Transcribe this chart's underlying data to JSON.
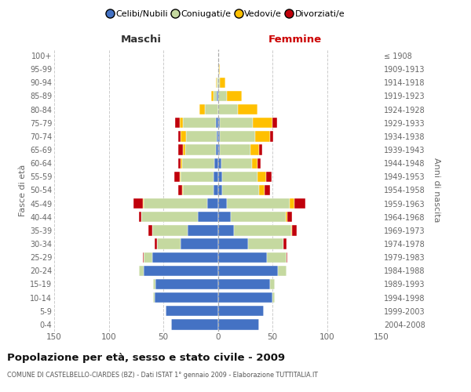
{
  "age_groups": [
    "0-4",
    "5-9",
    "10-14",
    "15-19",
    "20-24",
    "25-29",
    "30-34",
    "35-39",
    "40-44",
    "45-49",
    "50-54",
    "55-59",
    "60-64",
    "65-69",
    "70-74",
    "75-79",
    "80-84",
    "85-89",
    "90-94",
    "95-99",
    "100+"
  ],
  "birth_years": [
    "2004-2008",
    "1999-2003",
    "1994-1998",
    "1989-1993",
    "1984-1988",
    "1979-1983",
    "1974-1978",
    "1969-1973",
    "1964-1968",
    "1959-1963",
    "1954-1958",
    "1949-1953",
    "1944-1948",
    "1939-1943",
    "1934-1938",
    "1929-1933",
    "1924-1928",
    "1919-1923",
    "1914-1918",
    "1909-1913",
    "≤ 1908"
  ],
  "male_celibi": [
    43,
    48,
    58,
    57,
    68,
    60,
    34,
    28,
    18,
    10,
    4,
    4,
    3,
    2,
    1,
    2,
    0,
    1,
    0,
    0,
    0
  ],
  "male_coniugati": [
    0,
    0,
    1,
    2,
    4,
    8,
    22,
    32,
    52,
    58,
    28,
    30,
    30,
    28,
    28,
    30,
    12,
    3,
    1,
    0,
    0
  ],
  "male_vedovi": [
    0,
    0,
    0,
    0,
    0,
    0,
    0,
    0,
    0,
    1,
    1,
    1,
    1,
    2,
    5,
    3,
    5,
    2,
    1,
    0,
    0
  ],
  "male_divorziati": [
    0,
    0,
    0,
    0,
    0,
    1,
    2,
    4,
    2,
    8,
    3,
    5,
    2,
    4,
    2,
    4,
    0,
    0,
    0,
    0,
    0
  ],
  "female_nubili": [
    38,
    42,
    50,
    48,
    55,
    45,
    28,
    15,
    12,
    8,
    4,
    4,
    3,
    2,
    2,
    2,
    0,
    0,
    0,
    0,
    0
  ],
  "female_coniugate": [
    0,
    0,
    2,
    4,
    8,
    18,
    32,
    52,
    50,
    58,
    34,
    32,
    28,
    28,
    32,
    30,
    18,
    8,
    2,
    1,
    0
  ],
  "female_vedove": [
    0,
    0,
    0,
    0,
    0,
    0,
    0,
    1,
    2,
    4,
    5,
    8,
    5,
    8,
    14,
    18,
    18,
    14,
    5,
    1,
    0
  ],
  "female_divorziate": [
    0,
    0,
    0,
    0,
    0,
    1,
    3,
    4,
    4,
    10,
    5,
    5,
    3,
    3,
    3,
    4,
    0,
    0,
    0,
    0,
    0
  ],
  "colors": {
    "celibi": "#4472c4",
    "coniugati": "#c5d9a0",
    "vedovi": "#ffc000",
    "divorziati": "#c0000b"
  },
  "xlim": 150,
  "title": "Popolazione per età, sesso e stato civile - 2009",
  "subtitle": "COMUNE DI CASTELBELLO-CIARDES (BZ) - Dati ISTAT 1° gennaio 2009 - Elaborazione TUTTITALIA.IT",
  "ylabel_left": "Fasce di età",
  "ylabel_right": "Anni di nascita",
  "header_maschi": "Maschi",
  "header_femmine": "Femmine",
  "legend_labels": [
    "Celibi/Nubili",
    "Coniugati/e",
    "Vedovi/e",
    "Divorziati/e"
  ],
  "bg_color": "#ffffff",
  "grid_color": "#cccccc"
}
